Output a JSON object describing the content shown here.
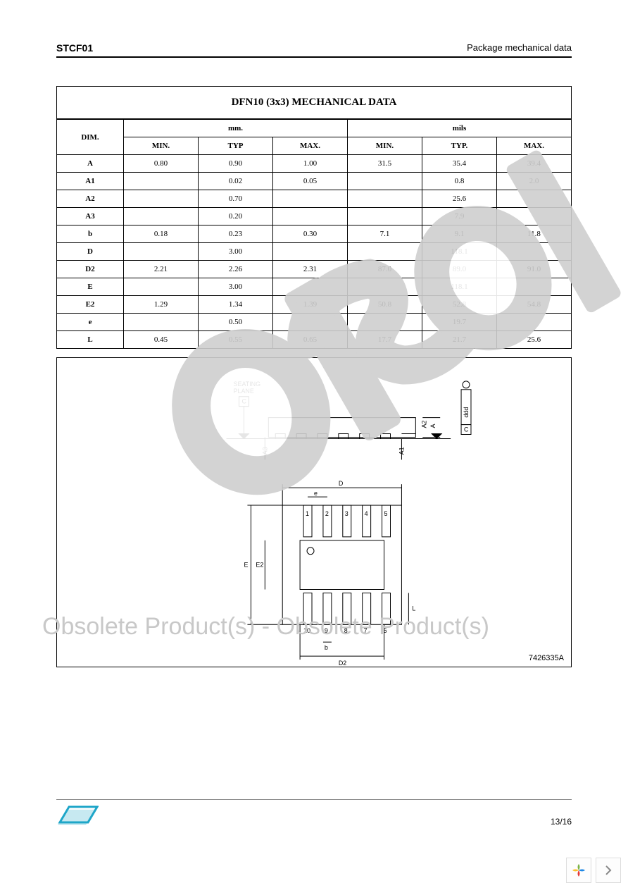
{
  "header": {
    "product_code": "STCF01",
    "section_title": "Package mechanical data"
  },
  "table": {
    "title": "DFN10 (3x3) MECHANICAL DATA",
    "dim_header": "DIM.",
    "unit_mm": "mm.",
    "unit_mils": "mils",
    "col_min": "MIN.",
    "col_typ_mm": "TYP",
    "col_typ_mils": "TYP.",
    "col_max": "MAX.",
    "rows": [
      {
        "dim": "A",
        "mm_min": "0.80",
        "mm_typ": "0.90",
        "mm_max": "1.00",
        "mils_min": "31.5",
        "mils_typ": "35.4",
        "mils_max": "39.4"
      },
      {
        "dim": "A1",
        "mm_min": "",
        "mm_typ": "0.02",
        "mm_max": "0.05",
        "mils_min": "",
        "mils_typ": "0.8",
        "mils_max": "2.0"
      },
      {
        "dim": "A2",
        "mm_min": "",
        "mm_typ": "0.70",
        "mm_max": "",
        "mils_min": "",
        "mils_typ": "25.6",
        "mils_max": ""
      },
      {
        "dim": "A3",
        "mm_min": "",
        "mm_typ": "0.20",
        "mm_max": "",
        "mils_min": "",
        "mils_typ": "7.9",
        "mils_max": ""
      },
      {
        "dim": "b",
        "mm_min": "0.18",
        "mm_typ": "0.23",
        "mm_max": "0.30",
        "mils_min": "7.1",
        "mils_typ": "9.1",
        "mils_max": "11.8"
      },
      {
        "dim": "D",
        "mm_min": "",
        "mm_typ": "3.00",
        "mm_max": "",
        "mils_min": "",
        "mils_typ": "118.1",
        "mils_max": ""
      },
      {
        "dim": "D2",
        "mm_min": "2.21",
        "mm_typ": "2.26",
        "mm_max": "2.31",
        "mils_min": "87.0",
        "mils_typ": "89.0",
        "mils_max": "91.0"
      },
      {
        "dim": "E",
        "mm_min": "",
        "mm_typ": "3.00",
        "mm_max": "",
        "mils_min": "",
        "mils_typ": "118.1",
        "mils_max": ""
      },
      {
        "dim": "E2",
        "mm_min": "1.29",
        "mm_typ": "1.34",
        "mm_max": "1.39",
        "mils_min": "50.8",
        "mils_typ": "52.8",
        "mils_max": "54.8"
      },
      {
        "dim": "e",
        "mm_min": "",
        "mm_typ": "0.50",
        "mm_max": "",
        "mils_min": "",
        "mils_typ": "19.7",
        "mils_max": ""
      },
      {
        "dim": "L",
        "mm_min": "0.45",
        "mm_typ": "0.55",
        "mm_max": "0.65",
        "mils_min": "17.7",
        "mils_typ": "21.7",
        "mils_max": "25.6"
      }
    ]
  },
  "diagram": {
    "seating_label": "SEATING PLANE",
    "datum_c": "C",
    "ddd_label": "ddd",
    "labels": {
      "A": "A",
      "A1": "A1",
      "A2": "A2",
      "A3": "A3",
      "D": "D",
      "D2": "D2",
      "E": "E",
      "E2": "E2",
      "e": "e",
      "b": "b",
      "L": "L"
    },
    "pins_top": [
      "1",
      "2",
      "3",
      "4",
      "5"
    ],
    "pins_bot": [
      "10",
      "9",
      "8",
      "7",
      "6"
    ],
    "drawing_number": "7426335A"
  },
  "watermarks": {
    "big_obsolete_front": "Obsolete Product(s)",
    "big_obsolete_back": "Obsolete Product(s)",
    "separator": " - "
  },
  "footer": {
    "page_num": "13/16",
    "logo_alt": "ST"
  }
}
